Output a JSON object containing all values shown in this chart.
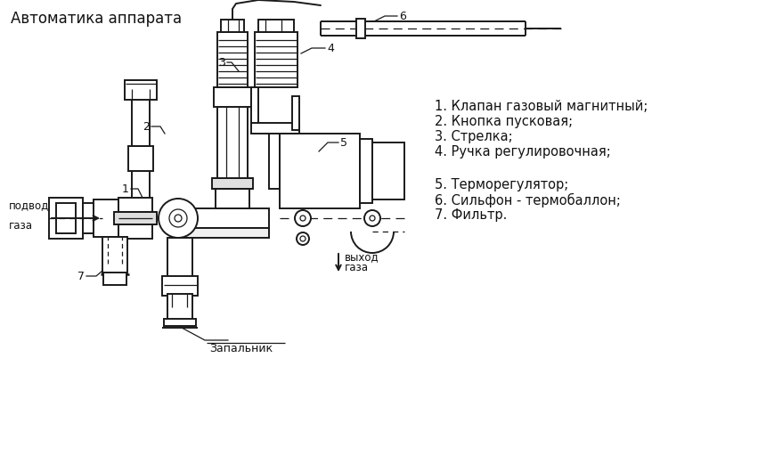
{
  "title": "Автоматика аппарата",
  "legend_group1": [
    "1. Клапан газовый магнитный;",
    "2. Кнопка пусковая;",
    "3. Стрелка;",
    "4. Ручка регулировочная;"
  ],
  "legend_group2": [
    "5. Терморегулятор;",
    "6. Сильфон - термобаллон;",
    "7. Фильтр."
  ],
  "label_podvod1": "подвод",
  "label_podvod2": "газа",
  "label_vykhod1": "выход",
  "label_vykhod2": "газа",
  "label_zapalnik": "Запальник",
  "bg_color": "#ffffff",
  "line_color": "#1a1a1a",
  "text_color": "#111111",
  "title_fontsize": 12,
  "legend_fontsize": 10.5,
  "annot_fontsize": 8.5
}
